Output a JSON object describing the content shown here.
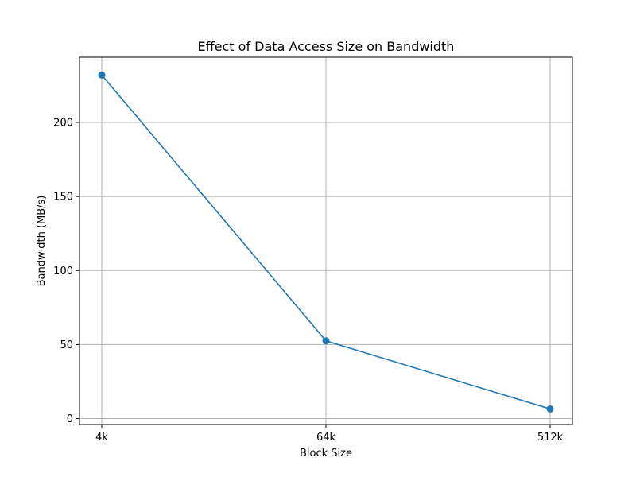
{
  "chart_data": {
    "type": "line",
    "title": "Effect of Data Access Size on Bandwidth",
    "xlabel": "Block Size",
    "ylabel": "Bandwidth (MB/s)",
    "categories": [
      "4k",
      "64k",
      "512k"
    ],
    "series": [
      {
        "values": [
          232,
          52.5,
          6.5
        ],
        "color": "#1f77b4",
        "marker": "circle"
      }
    ],
    "ylim": [
      -4,
      244
    ],
    "yticks": [
      0,
      50,
      100,
      150,
      200
    ],
    "grid": true,
    "gridColor": "#b0b0b0"
  }
}
